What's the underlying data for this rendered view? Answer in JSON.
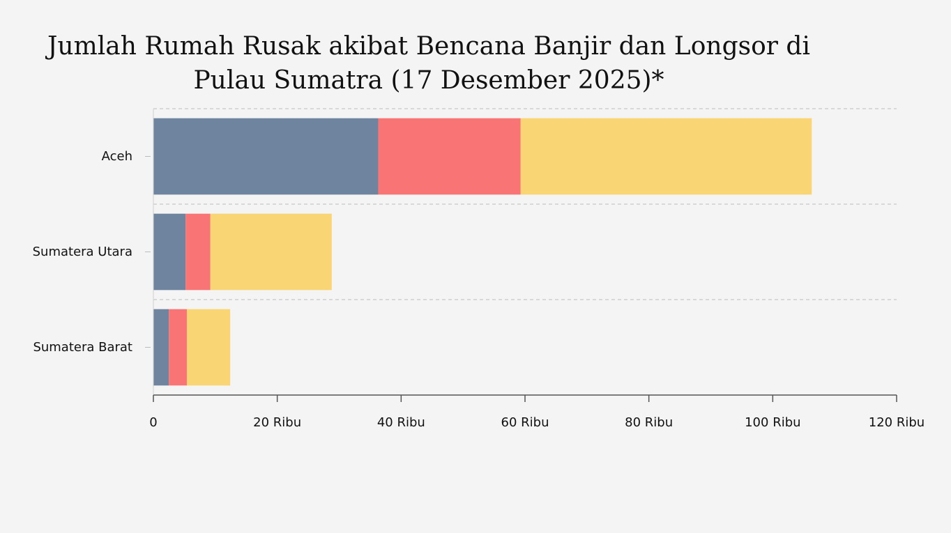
{
  "chart_data": {
    "type": "bar",
    "orientation": "horizontal",
    "stacked": true,
    "title_lines": [
      "Jumlah Rumah Rusak akibat Bencana Banjir dan Longsor di",
      "Pulau Sumatra (17 Desember 2025)*"
    ],
    "categories": [
      "Aceh",
      "Sumatera Utara",
      "Sumatera Barat"
    ],
    "series": [
      {
        "color": "#6f849e",
        "values": [
          36300,
          5200,
          2500
        ]
      },
      {
        "color": "#f87475",
        "values": [
          23000,
          4000,
          2900
        ]
      },
      {
        "color": "#f9d574",
        "values": [
          47000,
          19600,
          7000
        ]
      }
    ],
    "xlim": [
      0,
      120000
    ],
    "x_ticks": [
      {
        "value": 0,
        "label": "0"
      },
      {
        "value": 20000,
        "label": "20 Ribu"
      },
      {
        "value": 40000,
        "label": "40 Ribu"
      },
      {
        "value": 60000,
        "label": "60 Ribu"
      },
      {
        "value": 80000,
        "label": "80 Ribu"
      },
      {
        "value": 100000,
        "label": "100 Ribu"
      },
      {
        "value": 120000,
        "label": "120 Ribu"
      }
    ],
    "grid": "dashed horizontal separators",
    "legend": "none"
  }
}
